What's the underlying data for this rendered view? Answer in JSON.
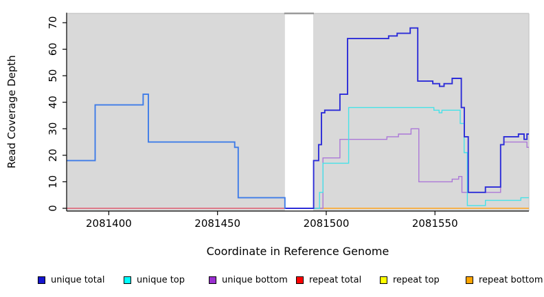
{
  "figure": {
    "plot_bg_color": "#d9d9d9",
    "outer_border_color": "#c9c9c9",
    "axis_color": "#000000",
    "masked_region_cap_color": "#8f8f8f"
  },
  "chart_data": {
    "type": "line",
    "subtype": "step-coverage",
    "title": "",
    "xlabel": "Coordinate in Reference Genome",
    "ylabel": "Read Coverage Depth",
    "xlim": [
      2081380.6,
      2081593.2
    ],
    "ylim": [
      -1.04,
      73.5
    ],
    "x_ticks": [
      2081400,
      2081450,
      2081500,
      2081550
    ],
    "x_tick_labels": [
      "2081400",
      "2081450",
      "2081500",
      "2081550"
    ],
    "y_ticks": [
      0,
      10,
      20,
      30,
      40,
      50,
      60,
      70
    ],
    "y_tick_labels": [
      "0",
      "10",
      "20",
      "30",
      "40",
      "50",
      "60",
      "70"
    ],
    "grid": false,
    "masked_region": {
      "from": 2081481,
      "to": 2081494,
      "color": "#ffffff"
    },
    "legend_position": "bottom",
    "legend": [
      {
        "label": "unique total",
        "color": "#1515cf"
      },
      {
        "label": "unique top",
        "color": "#00ffff"
      },
      {
        "label": "unique bottom",
        "color": "#9a2fd0"
      },
      {
        "label": "repeat total",
        "color": "#ff0000"
      },
      {
        "label": "repeat top",
        "color": "#ffff00"
      },
      {
        "label": "repeat bottom",
        "color": "#ffa500"
      }
    ],
    "series": [
      {
        "name": "repeat total",
        "color": "#e0425a",
        "width": 1.2,
        "end": 2081481,
        "steps": [
          [
            2081380.6,
            0
          ]
        ]
      },
      {
        "name": "repeat bottom",
        "color": "#ffa41e",
        "width": 1.6,
        "end": 2081593.2,
        "steps": [
          [
            2081494.2,
            0
          ]
        ]
      },
      {
        "name": "unique bottom",
        "color": "#ab77d8",
        "width": 1.4,
        "end": 2081593.2,
        "steps": [
          [
            2081481,
            0
          ],
          [
            2081498.5,
            19
          ],
          [
            2081506.3,
            26
          ],
          [
            2081527.9,
            27
          ],
          [
            2081533.2,
            28
          ],
          [
            2081539,
            30
          ],
          [
            2081542.6,
            10
          ],
          [
            2081557.9,
            11
          ],
          [
            2081560.9,
            12
          ],
          [
            2081562.4,
            6
          ],
          [
            2081580.2,
            24
          ],
          [
            2081581.7,
            25
          ],
          [
            2081592.3,
            23
          ]
        ]
      },
      {
        "name": "unique top",
        "color": "#45e2e8",
        "width": 1.4,
        "end": 2081593.2,
        "steps": [
          [
            2081494.2,
            0
          ],
          [
            2081496.9,
            6
          ],
          [
            2081498.5,
            17
          ],
          [
            2081510.3,
            38
          ],
          [
            2081549.5,
            37
          ],
          [
            2081551.9,
            36
          ],
          [
            2081553.2,
            37
          ],
          [
            2081561.6,
            32
          ],
          [
            2081563.4,
            21
          ],
          [
            2081564.9,
            1
          ],
          [
            2081573.2,
            3
          ],
          [
            2081589.5,
            4
          ]
        ]
      },
      {
        "name": "unique total (right)",
        "color": "#2b2bd8",
        "width": 1.9,
        "end": 2081593.2,
        "steps": [
          [
            2081481,
            0
          ],
          [
            2081494.2,
            18
          ],
          [
            2081496.5,
            24
          ],
          [
            2081497.8,
            36
          ],
          [
            2081499.3,
            37
          ],
          [
            2081506.3,
            43
          ],
          [
            2081509.8,
            64
          ],
          [
            2081528.7,
            65
          ],
          [
            2081532.6,
            66
          ],
          [
            2081538.6,
            68
          ],
          [
            2081542.1,
            48
          ],
          [
            2081549,
            47
          ],
          [
            2081552.1,
            46
          ],
          [
            2081554.2,
            47
          ],
          [
            2081557.9,
            49
          ],
          [
            2081562.1,
            38
          ],
          [
            2081563.5,
            27
          ],
          [
            2081565.3,
            6
          ],
          [
            2081573.2,
            8
          ],
          [
            2081580.2,
            24
          ],
          [
            2081581.7,
            27
          ],
          [
            2081588.4,
            28
          ],
          [
            2081591,
            26
          ],
          [
            2081592.3,
            28
          ]
        ]
      },
      {
        "name": "unique total (left)",
        "color": "#3d7be8",
        "width": 1.9,
        "end": 2081481.3,
        "steps": [
          [
            2081380.6,
            18
          ],
          [
            2081393.7,
            39
          ],
          [
            2081415.8,
            43
          ],
          [
            2081418.2,
            25
          ],
          [
            2081457.9,
            23
          ],
          [
            2081459.5,
            4
          ],
          [
            2081481,
            0
          ]
        ]
      }
    ]
  }
}
